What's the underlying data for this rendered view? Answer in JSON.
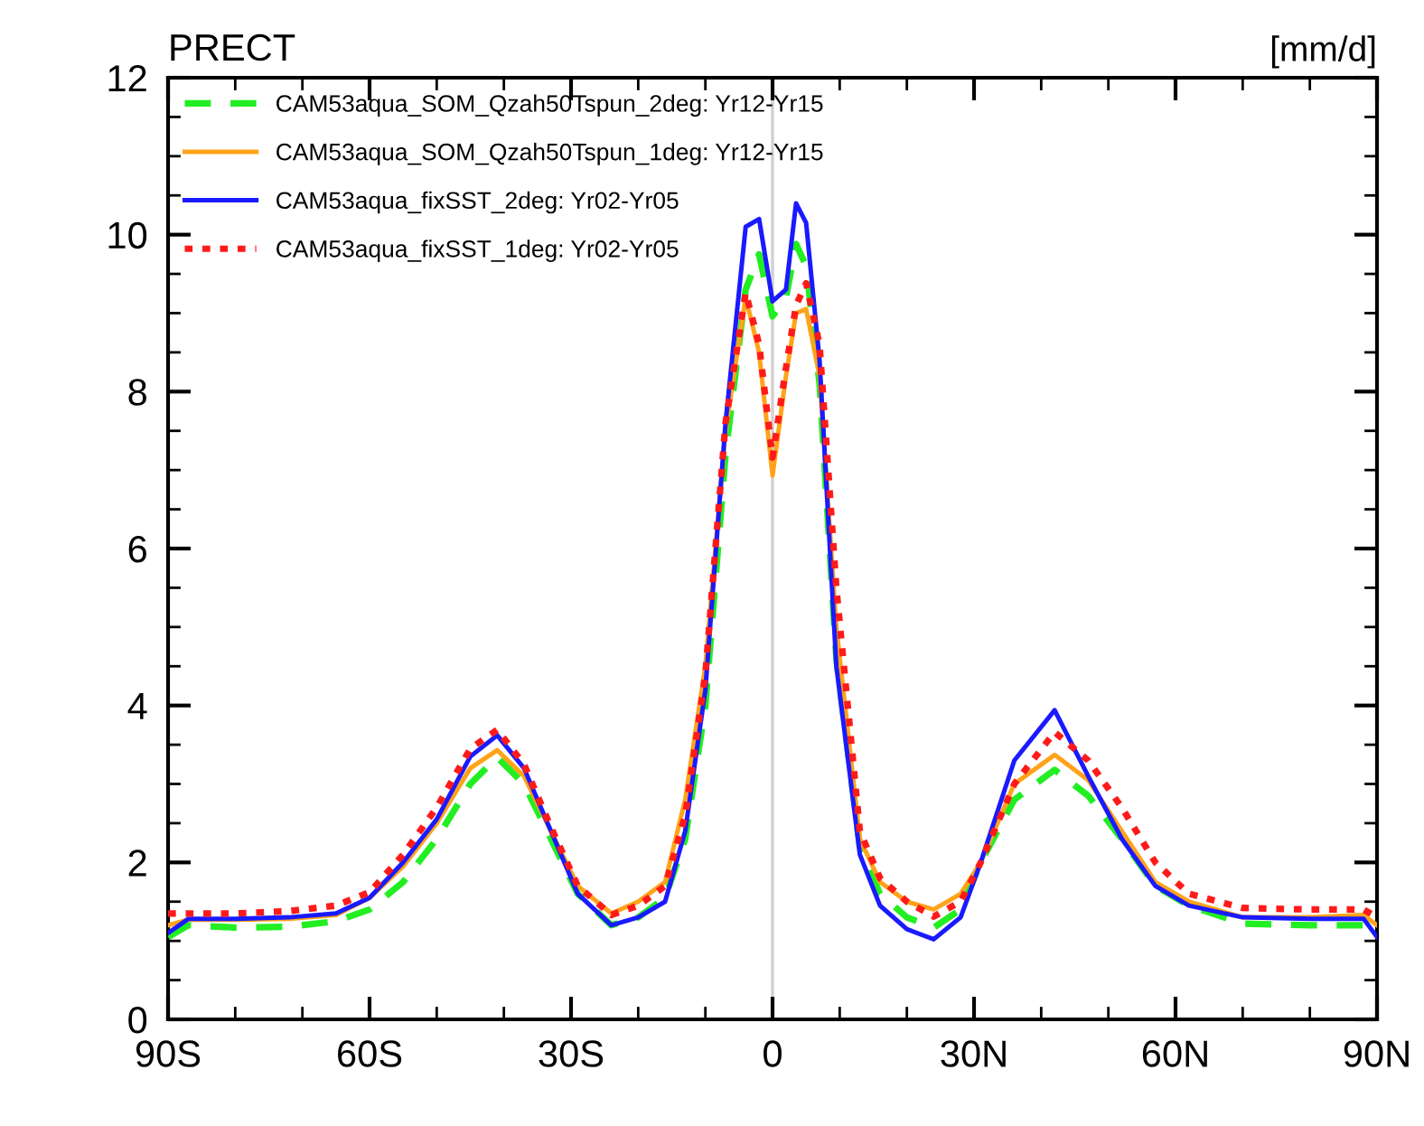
{
  "chart_data": {
    "type": "line",
    "title": "PRECT",
    "ylabel": "[mm/d]",
    "x": [
      -90,
      -87,
      -80,
      -72,
      -65,
      -60,
      -55,
      -50,
      -45,
      -41,
      -37,
      -33,
      -29,
      -24,
      -20,
      -16,
      -13,
      -10,
      -7,
      -4,
      -2,
      0,
      2,
      3.5,
      5,
      7,
      9.5,
      13,
      16,
      20,
      24,
      28,
      31,
      36,
      42,
      47,
      52,
      57,
      62,
      70,
      80,
      88,
      90
    ],
    "series": [
      {
        "name": "CAM53aqua_SOM_Qzah50Tspun_2deg: Yr12-Yr15",
        "color": "#22ee22",
        "line_style": "dashed",
        "values": [
          1.05,
          1.2,
          1.17,
          1.18,
          1.25,
          1.4,
          1.75,
          2.3,
          3.0,
          3.34,
          3.0,
          2.3,
          1.6,
          1.2,
          1.3,
          1.55,
          2.3,
          4.0,
          7.2,
          9.3,
          9.75,
          8.96,
          9.2,
          9.88,
          9.6,
          8.1,
          4.6,
          2.2,
          1.6,
          1.3,
          1.17,
          1.4,
          2.0,
          2.8,
          3.18,
          2.85,
          2.3,
          1.7,
          1.45,
          1.22,
          1.2,
          1.2,
          1.05
        ]
      },
      {
        "name": "CAM53aqua_SOM_Qzah50Tspun_1deg: Yr12-Yr15",
        "color": "#ffa31a",
        "line_style": "solid",
        "values": [
          1.2,
          1.27,
          1.27,
          1.28,
          1.33,
          1.55,
          1.95,
          2.5,
          3.2,
          3.43,
          3.1,
          2.4,
          1.7,
          1.35,
          1.5,
          1.75,
          2.8,
          4.5,
          7.5,
          9.2,
          8.5,
          6.93,
          8.2,
          9.0,
          9.05,
          8.2,
          5.0,
          2.3,
          1.75,
          1.5,
          1.4,
          1.6,
          2.0,
          3.0,
          3.37,
          3.05,
          2.4,
          1.75,
          1.5,
          1.3,
          1.3,
          1.33,
          1.2
        ]
      },
      {
        "name": "CAM53aqua_fixSST_2deg: Yr02-Yr05",
        "color": "#1a1aff",
        "line_style": "solid",
        "values": [
          1.1,
          1.28,
          1.28,
          1.3,
          1.35,
          1.55,
          2.0,
          2.55,
          3.35,
          3.62,
          3.2,
          2.4,
          1.6,
          1.2,
          1.3,
          1.5,
          2.4,
          4.2,
          7.6,
          10.1,
          10.2,
          9.15,
          9.3,
          10.4,
          10.15,
          8.4,
          4.5,
          2.1,
          1.45,
          1.15,
          1.02,
          1.3,
          2.0,
          3.3,
          3.94,
          3.1,
          2.3,
          1.7,
          1.45,
          1.3,
          1.28,
          1.28,
          1.05
        ]
      },
      {
        "name": "CAM53aqua_fixSST_1deg: Yr02-Yr05",
        "color": "#ff1a1a",
        "line_style": "dotted",
        "values": [
          1.35,
          1.35,
          1.35,
          1.38,
          1.45,
          1.62,
          2.1,
          2.7,
          3.45,
          3.69,
          3.25,
          2.45,
          1.7,
          1.33,
          1.45,
          1.7,
          2.6,
          4.4,
          7.6,
          9.26,
          8.6,
          7.16,
          8.3,
          9.1,
          9.38,
          8.6,
          5.5,
          2.4,
          1.8,
          1.5,
          1.31,
          1.5,
          2.0,
          3.0,
          3.66,
          3.3,
          2.7,
          2.0,
          1.6,
          1.42,
          1.4,
          1.4,
          1.3
        ]
      }
    ],
    "xlim": [
      -90,
      90
    ],
    "xticks": [
      {
        "value": -90,
        "label": "90S"
      },
      {
        "value": -60,
        "label": "60S"
      },
      {
        "value": -30,
        "label": "30S"
      },
      0,
      {
        "value": 30,
        "label": "30N"
      },
      {
        "value": 60,
        "label": "60N"
      },
      {
        "value": 90,
        "label": "90N"
      }
    ],
    "ylim": [
      0,
      12
    ],
    "yticks": [
      0,
      2,
      4,
      6,
      8,
      10,
      12
    ],
    "ref_lines": [
      {
        "axis": "x",
        "value": 0,
        "color": "#d0d0d0"
      }
    ],
    "legend": "top left",
    "grid": false
  }
}
